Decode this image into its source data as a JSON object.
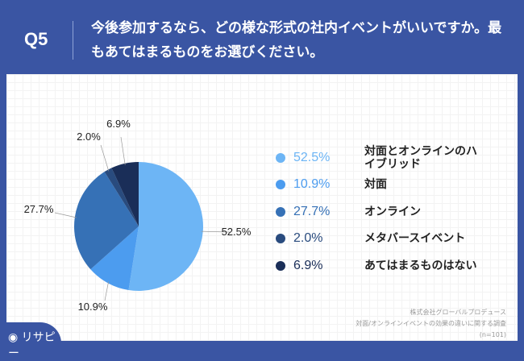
{
  "header": {
    "q_label": "Q5",
    "title": "今後参加するなら、どの様な形式の社内イベントがいいですか。最もあてはまるものをお選びください。"
  },
  "chart_data": {
    "type": "pie",
    "categories": [
      "対面とオンラインのハイブリッド",
      "対面",
      "オンライン",
      "メタバースイベント",
      "あてはまるものはない"
    ],
    "values": [
      52.5,
      10.9,
      27.7,
      2.0,
      6.9
    ],
    "labels": [
      "52.5%",
      "10.9%",
      "27.7%",
      "2.0%",
      "6.9%"
    ],
    "colors": [
      "#6db5f5",
      "#4c9cef",
      "#3671b6",
      "#294b7e",
      "#1a2e58"
    ],
    "start": "top",
    "direction": "clockwise",
    "legend": "right"
  },
  "source": {
    "line1": "株式会社グローバルプロデュース",
    "line2": "対面/オンラインイベントの効果の違いに関する調査",
    "line3": "(n=101)"
  },
  "logo": {
    "text": "リサピー"
  }
}
